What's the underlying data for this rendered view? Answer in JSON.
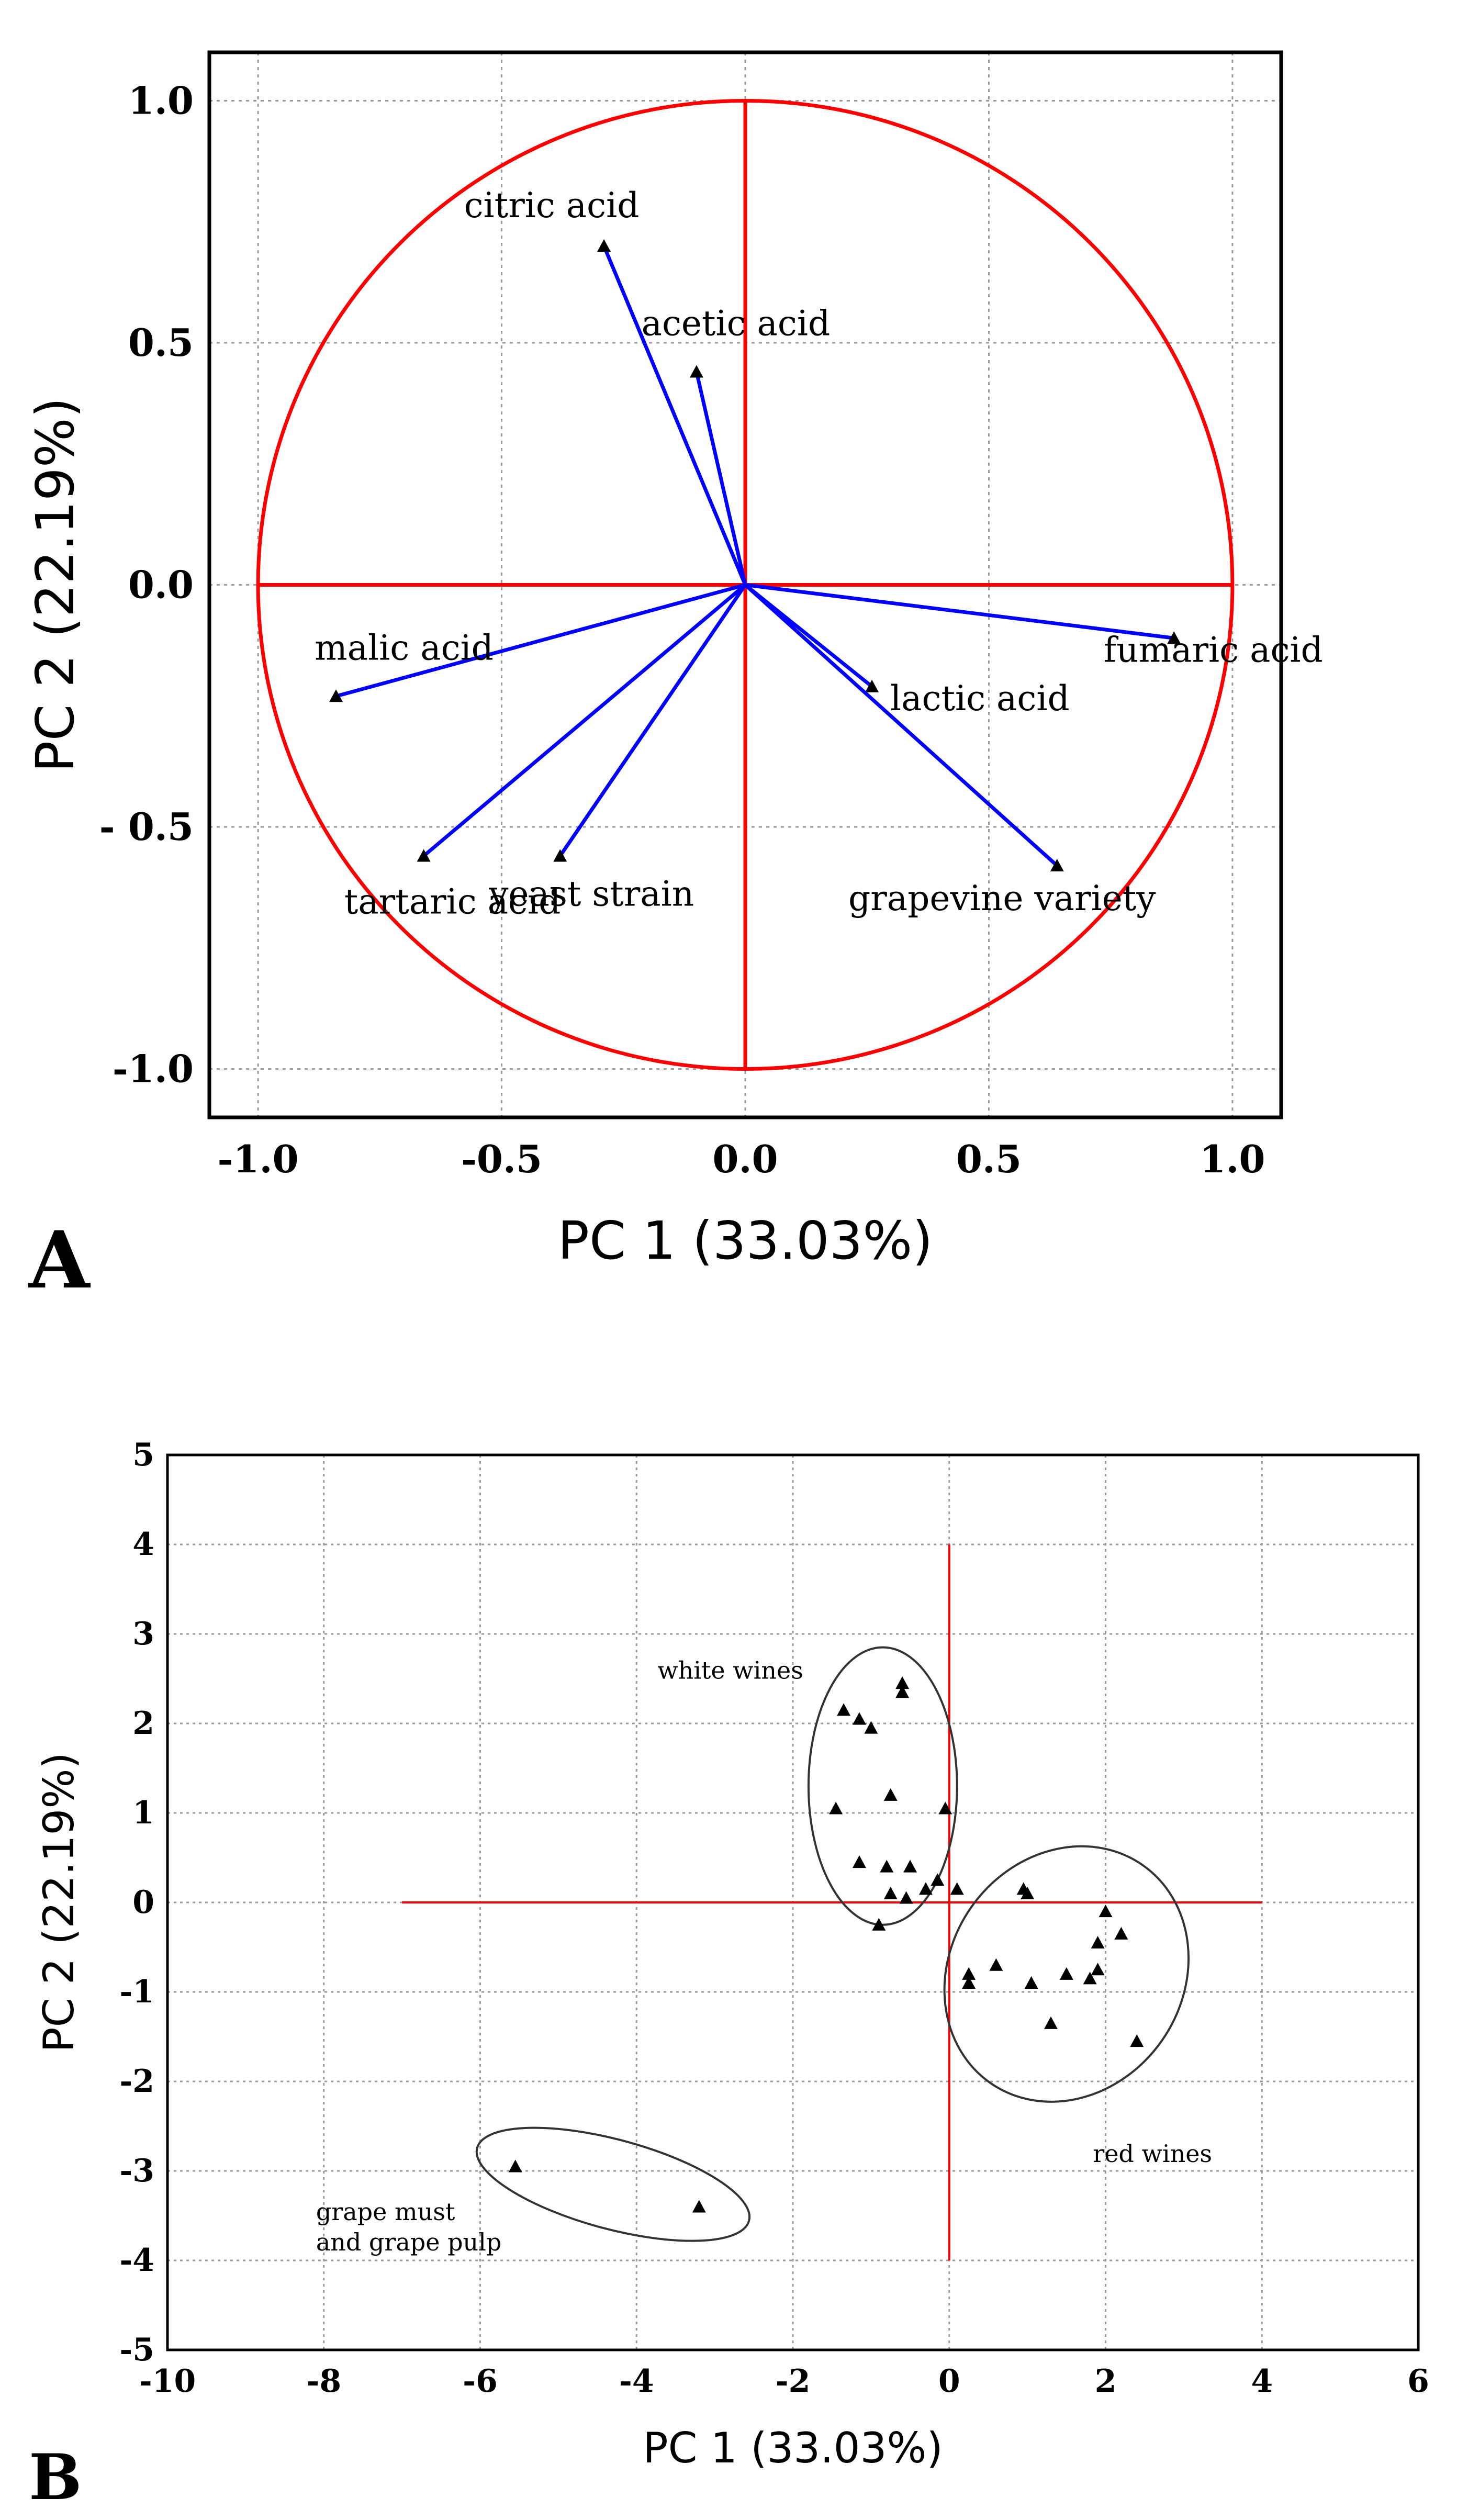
{
  "chart_data": [
    {
      "type": "scatter",
      "subtype": "loading-plot",
      "panel_label": "A",
      "xlabel": "PC 1 (33.03%)",
      "ylabel": "PC 2 (22.19%)",
      "xlim": [
        -1.1,
        1.1
      ],
      "ylim": [
        -1.1,
        1.1
      ],
      "xticks": [
        -1.0,
        -0.5,
        0.0,
        0.5,
        1.0
      ],
      "yticks": [
        -1.0,
        -0.5,
        0.0,
        0.5,
        1.0
      ],
      "x_tick_labels": [
        "-1.0",
        "-0.5",
        "0.0",
        "0.5",
        "1.0"
      ],
      "y_tick_labels": [
        "-1.0",
        "- 0.5",
        "0.0",
        "0.5",
        "1.0"
      ],
      "grid": true,
      "unit_circle": {
        "center": [
          0,
          0
        ],
        "radius": 1.0,
        "color": "#ff0000"
      },
      "vector_color": "#0000ff",
      "vectors": [
        {
          "name": "citric acid",
          "x": -0.29,
          "y": 0.7
        },
        {
          "name": "acetic acid",
          "x": -0.1,
          "y": 0.44
        },
        {
          "name": "malic acid",
          "x": -0.84,
          "y": -0.23
        },
        {
          "name": "tartaric acid",
          "x": -0.66,
          "y": -0.56
        },
        {
          "name": "yeast strain",
          "x": -0.38,
          "y": -0.56
        },
        {
          "name": "lactic acid",
          "x": 0.26,
          "y": -0.21
        },
        {
          "name": "fumaric acid",
          "x": 0.88,
          "y": -0.11
        },
        {
          "name": "grapevine variety",
          "x": 0.64,
          "y": -0.58
        }
      ]
    },
    {
      "type": "scatter",
      "subtype": "score-plot",
      "panel_label": "B",
      "xlabel": "PC 1 (33.03%)",
      "ylabel": "PC 2 (22.19%)",
      "xlim": [
        -10,
        6
      ],
      "ylim": [
        -5,
        5
      ],
      "xticks": [
        -10,
        -8,
        -6,
        -4,
        -2,
        0,
        2,
        4,
        6
      ],
      "yticks": [
        -5,
        -4,
        -3,
        -2,
        -1,
        0,
        1,
        2,
        3,
        4,
        5
      ],
      "x_tick_labels": [
        "-10",
        "-8",
        "-6",
        "-4",
        "-2",
        "0",
        "2",
        "4",
        "6"
      ],
      "y_tick_labels": [
        "-5",
        "-4",
        "-3",
        "-2",
        "-1",
        "0",
        "1",
        "2",
        "3",
        "4",
        "5"
      ],
      "grid": true,
      "crosshair": {
        "x_range": [
          -7,
          4
        ],
        "y_range": [
          -4,
          4
        ],
        "color": "#ff0000"
      },
      "points": [
        {
          "x": -1.35,
          "y": 2.15
        },
        {
          "x": -1.15,
          "y": 2.05
        },
        {
          "x": -1.0,
          "y": 1.95
        },
        {
          "x": -0.6,
          "y": 2.45
        },
        {
          "x": -0.6,
          "y": 2.35
        },
        {
          "x": -0.75,
          "y": 1.2
        },
        {
          "x": -1.45,
          "y": 1.05
        },
        {
          "x": -0.05,
          "y": 1.05
        },
        {
          "x": -1.15,
          "y": 0.45
        },
        {
          "x": -0.8,
          "y": 0.4
        },
        {
          "x": -0.5,
          "y": 0.4
        },
        {
          "x": -0.75,
          "y": 0.1
        },
        {
          "x": -0.55,
          "y": 0.05
        },
        {
          "x": -0.3,
          "y": 0.15
        },
        {
          "x": -0.15,
          "y": 0.25
        },
        {
          "x": 0.1,
          "y": 0.15
        },
        {
          "x": -0.9,
          "y": -0.25
        },
        {
          "x": 0.95,
          "y": 0.15
        },
        {
          "x": 1.0,
          "y": 0.1
        },
        {
          "x": 2.0,
          "y": -0.1
        },
        {
          "x": 2.2,
          "y": -0.35
        },
        {
          "x": 1.9,
          "y": -0.45
        },
        {
          "x": 1.9,
          "y": -0.75
        },
        {
          "x": 1.8,
          "y": -0.85
        },
        {
          "x": 1.5,
          "y": -0.8
        },
        {
          "x": 0.6,
          "y": -0.7
        },
        {
          "x": 0.25,
          "y": -0.8
        },
        {
          "x": 0.25,
          "y": -0.9
        },
        {
          "x": 1.05,
          "y": -0.9
        },
        {
          "x": 1.3,
          "y": -1.35
        },
        {
          "x": 2.4,
          "y": -1.55
        },
        {
          "x": -5.55,
          "y": -2.95
        },
        {
          "x": -3.2,
          "y": -3.4
        }
      ],
      "groups": [
        {
          "label": "white wines",
          "ellipse": {
            "cx": -0.85,
            "cy": 1.3,
            "rx": 0.95,
            "ry": 1.55,
            "angle": 0
          }
        },
        {
          "label": "red wines",
          "ellipse": {
            "cx": 1.5,
            "cy": -0.8,
            "rx": 1.7,
            "ry": 1.3,
            "angle": -55
          }
        },
        {
          "label": "grape must\nand grape pulp",
          "ellipse": {
            "cx": -4.3,
            "cy": -3.15,
            "rx": 1.8,
            "ry": 0.5,
            "angle": 15
          }
        }
      ]
    }
  ]
}
